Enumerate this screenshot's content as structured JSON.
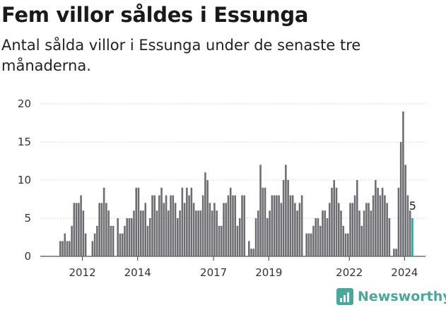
{
  "title": "Fem villor såldes i Essunga",
  "subtitle": "Antal sålda villor i Essunga under de senaste tre månaderna.",
  "brand": {
    "name": "Newsworthy",
    "color": "#49a89c"
  },
  "chart_data": {
    "type": "bar",
    "x_start": "2011-06",
    "interval": "month",
    "ylim": [
      0,
      20
    ],
    "yticks": [
      0,
      5,
      10,
      15,
      20
    ],
    "xticks": [
      "2012",
      "2014",
      "2017",
      "2019",
      "2022",
      "2024"
    ],
    "xticks_index": [
      10,
      34,
      67,
      91,
      126,
      150
    ],
    "values": [
      2,
      2,
      3,
      2,
      2,
      4,
      7,
      7,
      7,
      8,
      6,
      3,
      0,
      0,
      2,
      3,
      4,
      7,
      7,
      9,
      7,
      6,
      4,
      4,
      0,
      5,
      3,
      3,
      4,
      5,
      5,
      5,
      6,
      9,
      9,
      6,
      6,
      7,
      4,
      5,
      8,
      8,
      6,
      8,
      9,
      7,
      8,
      6,
      8,
      8,
      7,
      5,
      6,
      9,
      7,
      9,
      8,
      9,
      7,
      6,
      6,
      6,
      8,
      11,
      10,
      7,
      6,
      7,
      6,
      4,
      4,
      7,
      7,
      8,
      9,
      8,
      8,
      4,
      5,
      8,
      8,
      0,
      2,
      1,
      1,
      5,
      6,
      12,
      9,
      9,
      5,
      6,
      8,
      8,
      8,
      8,
      7,
      10,
      12,
      10,
      8,
      8,
      7,
      6,
      7,
      8,
      0,
      3,
      3,
      3,
      4,
      5,
      5,
      4,
      6,
      6,
      5,
      7,
      9,
      10,
      9,
      7,
      6,
      4,
      3,
      3,
      7,
      7,
      8,
      10,
      6,
      4,
      6,
      7,
      7,
      6,
      8,
      10,
      9,
      8,
      9,
      8,
      7,
      5,
      0,
      1,
      1,
      9,
      15,
      19,
      12,
      8,
      6,
      5
    ],
    "last_value_label": "5",
    "bar_color": "#6d6c70",
    "highlight_color": "#2aa298"
  }
}
